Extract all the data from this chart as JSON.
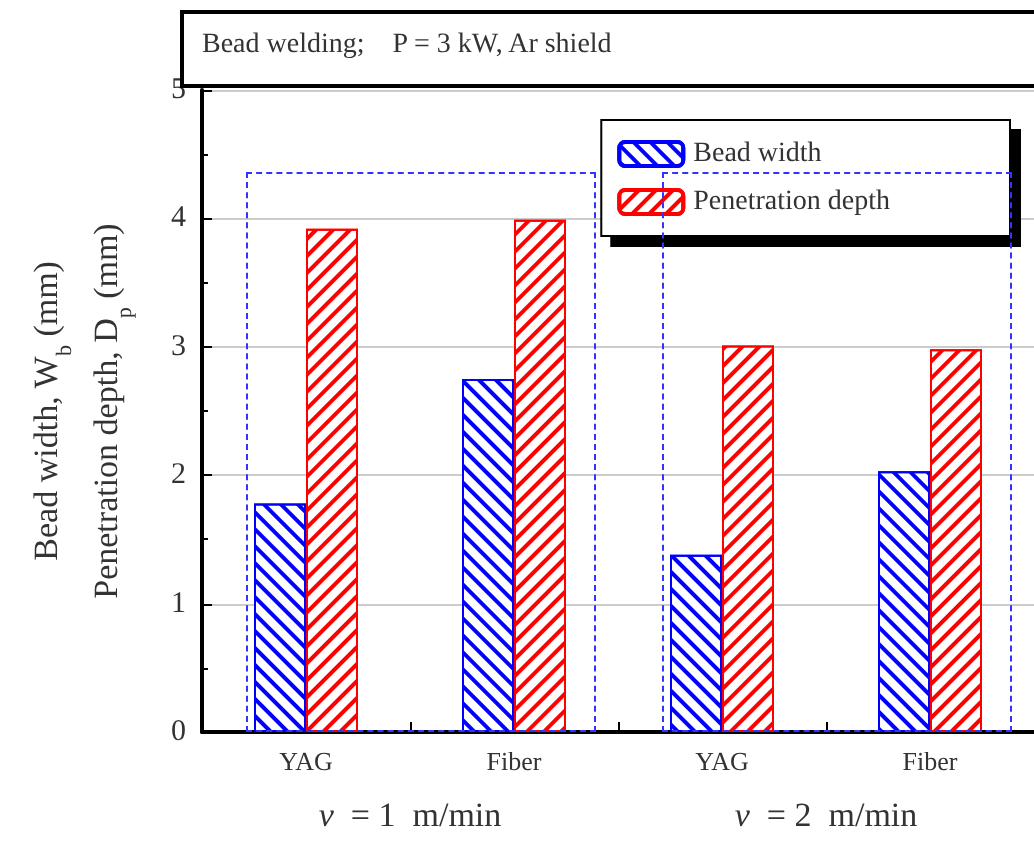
{
  "chart_data": {
    "type": "bar",
    "categories": [
      "YAG",
      "Fiber",
      "YAG",
      "Fiber"
    ],
    "series": [
      {
        "name": "Bead width",
        "color": "#0000ff",
        "values": [
          1.78,
          2.75,
          1.38,
          2.03
        ]
      },
      {
        "name": "Penetration depth",
        "color": "#ff0000",
        "values": [
          3.92,
          3.99,
          3.01,
          2.98
        ]
      }
    ],
    "ylabel": "Bead width, W$_{b}$ (mm)\nPenetration depth, D$_{p}$ (mm)",
    "ylim": [
      0,
      5
    ],
    "yticks": [
      0,
      1,
      2,
      3,
      4,
      5
    ],
    "grid": "y",
    "legend": "top right",
    "annotations": [
      "Bead welding;    P = 3 kW, Ar shield",
      "v  = 1  m/min",
      "v  = 2  m/min"
    ]
  }
}
